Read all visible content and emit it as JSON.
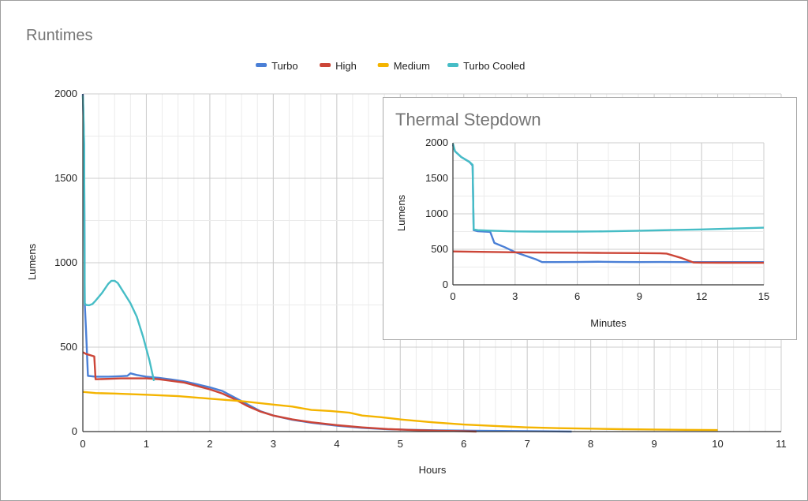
{
  "chart_data": [
    {
      "type": "line",
      "title": "Runtimes",
      "xlabel": "Hours",
      "ylabel": "Lumens",
      "xlim": [
        0,
        11
      ],
      "ylim": [
        0,
        2000
      ],
      "xticks": [
        "0",
        "1",
        "2",
        "3",
        "4",
        "5",
        "6",
        "7",
        "8",
        "9",
        "10",
        "11"
      ],
      "yticks": [
        "0",
        "500",
        "1000",
        "1500",
        "2000"
      ],
      "grid": true,
      "legend_position": "top",
      "series": [
        {
          "name": "Turbo",
          "color": "#4a7fd6",
          "points": [
            [
              0,
              2000
            ],
            [
              0.01,
              1850
            ],
            [
              0.02,
              1700
            ],
            [
              0.03,
              760
            ],
            [
              0.05,
              600
            ],
            [
              0.08,
              330
            ],
            [
              0.2,
              325
            ],
            [
              0.4,
              325
            ],
            [
              0.6,
              328
            ],
            [
              0.7,
              330
            ],
            [
              0.75,
              345
            ],
            [
              0.85,
              335
            ],
            [
              1.0,
              325
            ],
            [
              1.2,
              318
            ],
            [
              1.4,
              308
            ],
            [
              1.6,
              297
            ],
            [
              1.8,
              280
            ],
            [
              2.0,
              262
            ],
            [
              2.2,
              240
            ],
            [
              2.4,
              200
            ],
            [
              2.6,
              160
            ],
            [
              2.8,
              120
            ],
            [
              3.0,
              95
            ],
            [
              3.3,
              70
            ],
            [
              3.6,
              52
            ],
            [
              4.0,
              35
            ],
            [
              4.4,
              22
            ],
            [
              4.8,
              14
            ],
            [
              5.2,
              10
            ],
            [
              5.6,
              7
            ],
            [
              6.2,
              5
            ],
            [
              6.8,
              3
            ],
            [
              7.2,
              2
            ],
            [
              7.7,
              0
            ]
          ]
        },
        {
          "name": "High",
          "color": "#cc4537",
          "points": [
            [
              0,
              470
            ],
            [
              0.05,
              460
            ],
            [
              0.18,
              445
            ],
            [
              0.2,
              310
            ],
            [
              0.4,
              312
            ],
            [
              0.6,
              315
            ],
            [
              0.8,
              315
            ],
            [
              1.0,
              315
            ],
            [
              1.2,
              310
            ],
            [
              1.4,
              300
            ],
            [
              1.6,
              290
            ],
            [
              1.8,
              270
            ],
            [
              2.0,
              250
            ],
            [
              2.2,
              225
            ],
            [
              2.4,
              190
            ],
            [
              2.6,
              150
            ],
            [
              2.8,
              118
            ],
            [
              3.0,
              95
            ],
            [
              3.3,
              72
            ],
            [
              3.6,
              55
            ],
            [
              4.0,
              38
            ],
            [
              4.4,
              25
            ],
            [
              4.8,
              15
            ],
            [
              5.2,
              9
            ],
            [
              5.6,
              5
            ],
            [
              6.0,
              2
            ],
            [
              6.2,
              0
            ]
          ]
        },
        {
          "name": "Medium",
          "color": "#f4b400",
          "points": [
            [
              0,
              235
            ],
            [
              0.2,
              228
            ],
            [
              0.5,
              225
            ],
            [
              1.0,
              218
            ],
            [
              1.5,
              210
            ],
            [
              2.0,
              195
            ],
            [
              2.5,
              180
            ],
            [
              3.0,
              160
            ],
            [
              3.3,
              148
            ],
            [
              3.6,
              128
            ],
            [
              3.9,
              122
            ],
            [
              4.2,
              112
            ],
            [
              4.4,
              95
            ],
            [
              4.7,
              85
            ],
            [
              5.0,
              72
            ],
            [
              5.5,
              55
            ],
            [
              6.0,
              42
            ],
            [
              6.5,
              33
            ],
            [
              7.0,
              25
            ],
            [
              7.5,
              20
            ],
            [
              8.0,
              17
            ],
            [
              8.5,
              14
            ],
            [
              9.0,
              12
            ],
            [
              9.5,
              10
            ],
            [
              10.0,
              9
            ]
          ]
        },
        {
          "name": "Turbo Cooled",
          "color": "#46bdc6",
          "points": [
            [
              0,
              1990
            ],
            [
              0.01,
              1880
            ],
            [
              0.02,
              1700
            ],
            [
              0.03,
              760
            ],
            [
              0.05,
              750
            ],
            [
              0.1,
              748
            ],
            [
              0.15,
              755
            ],
            [
              0.2,
              775
            ],
            [
              0.3,
              820
            ],
            [
              0.4,
              875
            ],
            [
              0.45,
              893
            ],
            [
              0.5,
              893
            ],
            [
              0.55,
              880
            ],
            [
              0.65,
              820
            ],
            [
              0.75,
              760
            ],
            [
              0.85,
              680
            ],
            [
              0.95,
              560
            ],
            [
              1.05,
              420
            ],
            [
              1.12,
              300
            ]
          ]
        }
      ]
    },
    {
      "type": "line",
      "title": "Thermal Stepdown",
      "xlabel": "Minutes",
      "ylabel": "Lumens",
      "xlim": [
        0,
        15
      ],
      "ylim": [
        0,
        2000
      ],
      "xticks": [
        "0",
        "3",
        "6",
        "9",
        "12",
        "15"
      ],
      "yticks": [
        "0",
        "500",
        "1000",
        "1500",
        "2000"
      ],
      "grid": true,
      "series": [
        {
          "name": "Turbo",
          "color": "#4a7fd6",
          "points": [
            [
              0,
              1970
            ],
            [
              0.1,
              1880
            ],
            [
              0.4,
              1800
            ],
            [
              0.8,
              1730
            ],
            [
              0.95,
              1680
            ],
            [
              1.0,
              770
            ],
            [
              1.2,
              755
            ],
            [
              1.8,
              745
            ],
            [
              2.0,
              590
            ],
            [
              2.5,
              530
            ],
            [
              3.0,
              460
            ],
            [
              3.5,
              410
            ],
            [
              4.0,
              360
            ],
            [
              4.3,
              320
            ],
            [
              5.0,
              320
            ],
            [
              6.0,
              322
            ],
            [
              7.0,
              325
            ],
            [
              8.0,
              322
            ],
            [
              9.0,
              320
            ],
            [
              10.0,
              322
            ],
            [
              11.0,
              320
            ],
            [
              12.0,
              320
            ],
            [
              13.0,
              320
            ],
            [
              14.0,
              320
            ],
            [
              15.0,
              320
            ]
          ]
        },
        {
          "name": "High",
          "color": "#cc4537",
          "points": [
            [
              0,
              470
            ],
            [
              1.0,
              466
            ],
            [
              2.0,
              462
            ],
            [
              3.0,
              458
            ],
            [
              4.0,
              455
            ],
            [
              5.0,
              453
            ],
            [
              6.0,
              452
            ],
            [
              7.0,
              450
            ],
            [
              8.0,
              448
            ],
            [
              9.0,
              446
            ],
            [
              10.0,
              444
            ],
            [
              10.3,
              440
            ],
            [
              11.0,
              380
            ],
            [
              11.6,
              315
            ],
            [
              12.0,
              312
            ],
            [
              13.0,
              311
            ],
            [
              14.0,
              310
            ],
            [
              15.0,
              310
            ]
          ]
        },
        {
          "name": "Turbo Cooled",
          "color": "#46bdc6",
          "points": [
            [
              0,
              1990
            ],
            [
              0.1,
              1880
            ],
            [
              0.4,
              1800
            ],
            [
              0.8,
              1730
            ],
            [
              0.95,
              1690
            ],
            [
              1.0,
              780
            ],
            [
              1.2,
              770
            ],
            [
              2.0,
              760
            ],
            [
              3.0,
              752
            ],
            [
              4.0,
              750
            ],
            [
              5.0,
              750
            ],
            [
              6.0,
              750
            ],
            [
              7.0,
              752
            ],
            [
              8.0,
              756
            ],
            [
              9.0,
              762
            ],
            [
              10.0,
              768
            ],
            [
              11.0,
              774
            ],
            [
              12.0,
              780
            ],
            [
              13.0,
              788
            ],
            [
              14.0,
              796
            ],
            [
              15.0,
              805
            ]
          ]
        }
      ]
    }
  ]
}
